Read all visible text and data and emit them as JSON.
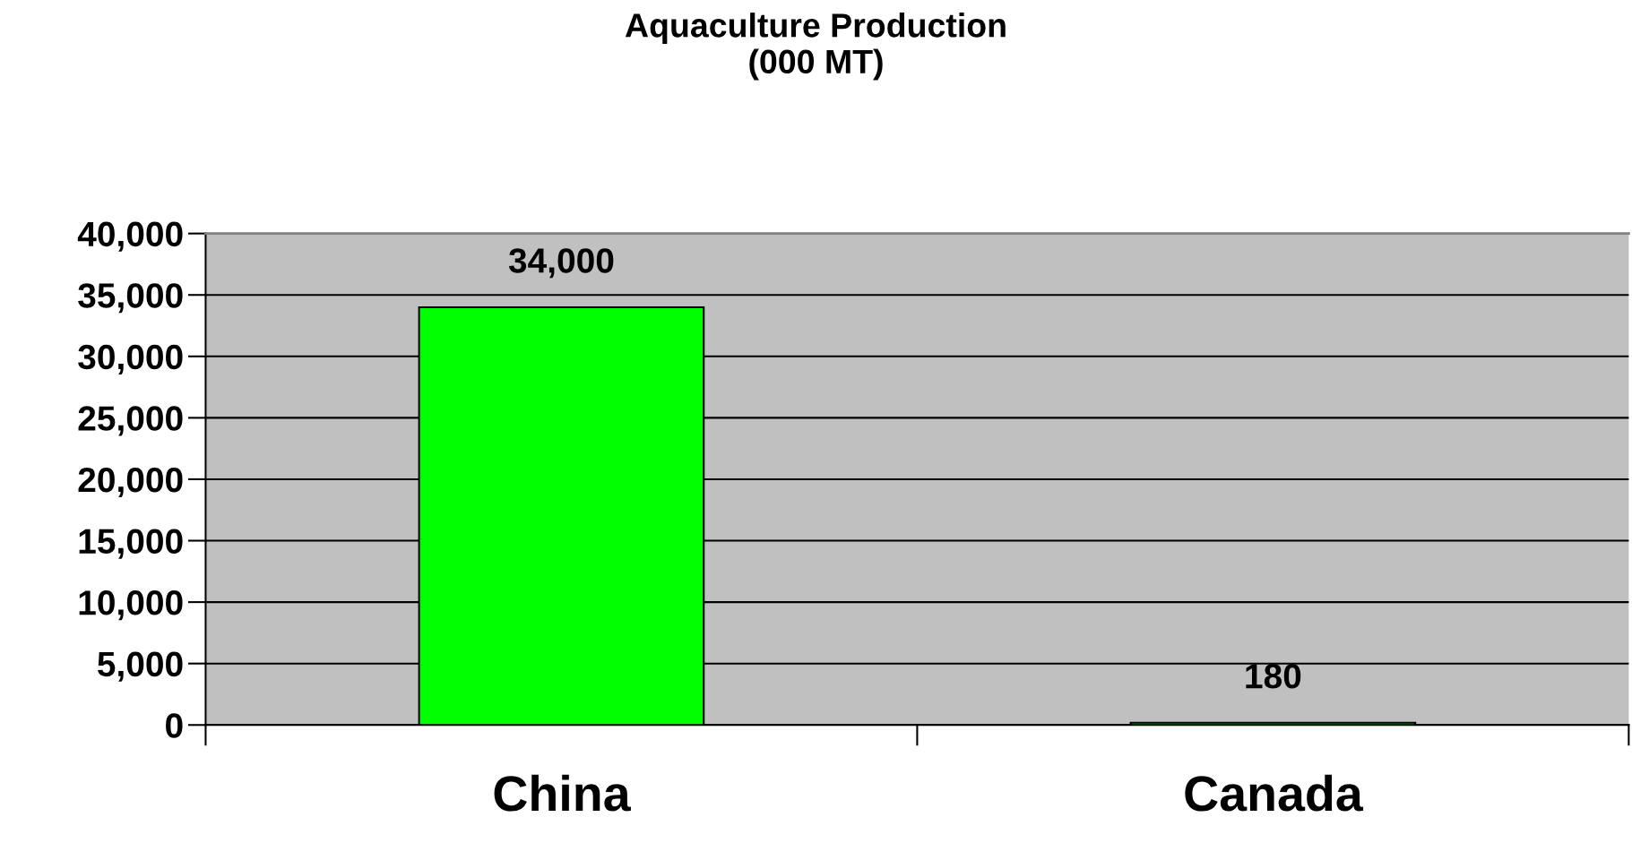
{
  "chart_data": {
    "type": "bar",
    "title": "Aquaculture Production\n(000 MT)",
    "categories": [
      "China",
      "Canada"
    ],
    "values": [
      34000,
      180
    ],
    "colors": [
      "#00ff00",
      "#00ff00"
    ],
    "ylim": [
      0,
      40000
    ],
    "yticks": [
      {
        "value": 0,
        "label": "0"
      },
      {
        "value": 5000,
        "label": "5,000"
      },
      {
        "value": 10000,
        "label": "10,000"
      },
      {
        "value": 15000,
        "label": "15,000"
      },
      {
        "value": 20000,
        "label": "20,000"
      },
      {
        "value": 25000,
        "label": "25,000"
      },
      {
        "value": 30000,
        "label": "30,000"
      },
      {
        "value": 35000,
        "label": "35,000"
      },
      {
        "value": 40000,
        "label": "40,000"
      }
    ],
    "value_labels": [
      "34,000",
      "180"
    ],
    "grid": "y"
  }
}
